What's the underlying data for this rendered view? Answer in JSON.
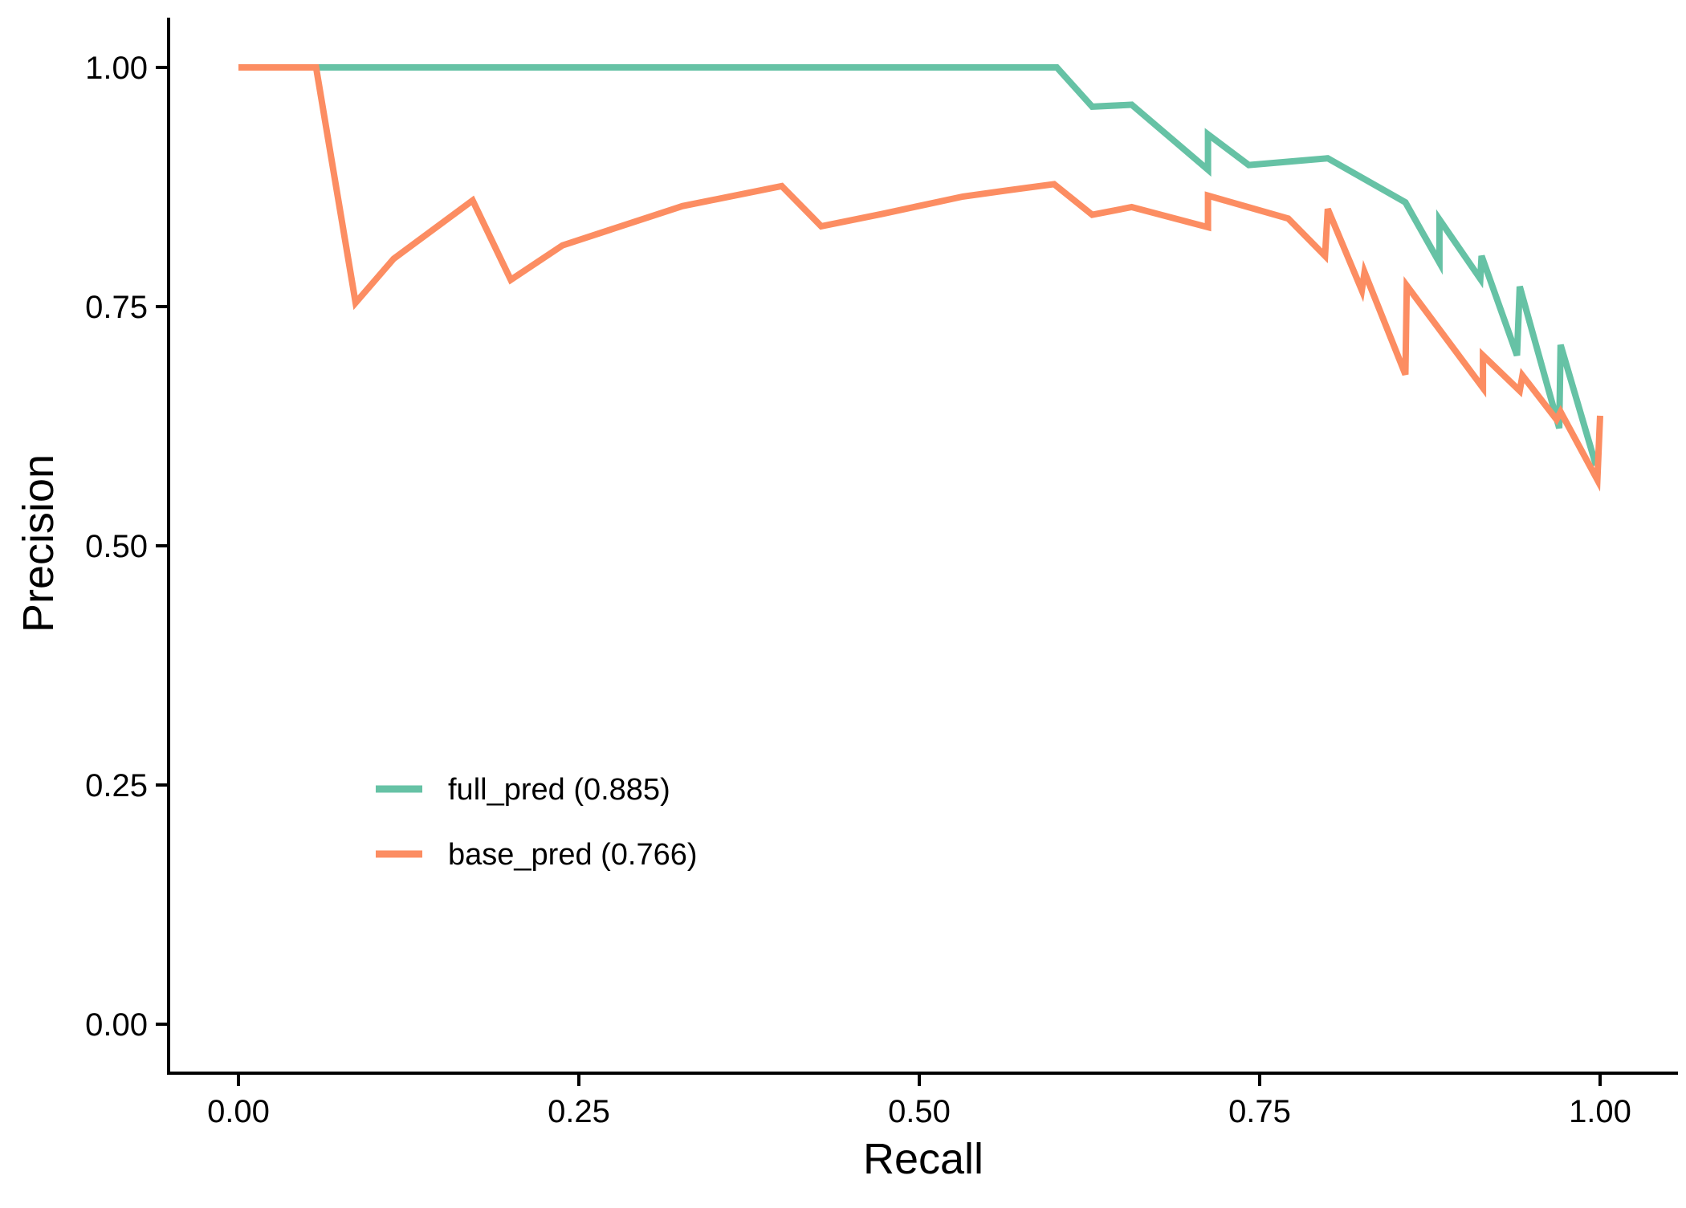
{
  "figure": {
    "background": "#ffffff",
    "text_color": "#000000",
    "axis_color": "#000000"
  },
  "axes": {
    "x": {
      "label": "Recall",
      "tick_labels": [
        "0.00",
        "0.25",
        "0.50",
        "0.75",
        "1.00"
      ],
      "tick_values": [
        0,
        0.25,
        0.5,
        0.75,
        1.0
      ]
    },
    "y": {
      "label": "Precision",
      "tick_labels": [
        "0.00",
        "0.25",
        "0.50",
        "0.75",
        "1.00"
      ],
      "tick_values": [
        0,
        0.25,
        0.5,
        0.75,
        1.0
      ]
    }
  },
  "legend": {
    "items": [
      {
        "label": "full_pred (0.885)",
        "color": "#66C2A5"
      },
      {
        "label": "base_pred (0.766)",
        "color": "#FC8D62"
      }
    ]
  },
  "chart_data": {
    "type": "line",
    "title": "",
    "xlabel": "Recall",
    "ylabel": "Precision",
    "xlim": [
      0,
      1
    ],
    "ylim": [
      0,
      1
    ],
    "grid": false,
    "legend_position": "inside bottom-left",
    "series": [
      {
        "name": "full_pred",
        "auc": 0.885,
        "color": "#66C2A5",
        "points": [
          [
            0.0,
            1.0
          ],
          [
            0.601,
            1.0
          ],
          [
            0.627,
            0.959
          ],
          [
            0.656,
            0.961
          ],
          [
            0.712,
            0.893
          ],
          [
            0.712,
            0.93
          ],
          [
            0.742,
            0.898
          ],
          [
            0.8,
            0.905
          ],
          [
            0.857,
            0.859
          ],
          [
            0.882,
            0.796
          ],
          [
            0.882,
            0.841
          ],
          [
            0.912,
            0.779
          ],
          [
            0.913,
            0.803
          ],
          [
            0.939,
            0.699
          ],
          [
            0.941,
            0.771
          ],
          [
            0.97,
            0.623
          ],
          [
            0.971,
            0.71
          ],
          [
            0.997,
            0.584
          ]
        ]
      },
      {
        "name": "base_pred",
        "auc": 0.766,
        "color": "#FC8D62",
        "points": [
          [
            0.0,
            1.0
          ],
          [
            0.057,
            1.0
          ],
          [
            0.086,
            0.754
          ],
          [
            0.114,
            0.8
          ],
          [
            0.172,
            0.861
          ],
          [
            0.2,
            0.778
          ],
          [
            0.238,
            0.814
          ],
          [
            0.326,
            0.855
          ],
          [
            0.399,
            0.876
          ],
          [
            0.428,
            0.834
          ],
          [
            0.473,
            0.847
          ],
          [
            0.532,
            0.865
          ],
          [
            0.562,
            0.871
          ],
          [
            0.599,
            0.878
          ],
          [
            0.627,
            0.846
          ],
          [
            0.656,
            0.854
          ],
          [
            0.712,
            0.833
          ],
          [
            0.712,
            0.866
          ],
          [
            0.771,
            0.842
          ],
          [
            0.798,
            0.803
          ],
          [
            0.8,
            0.852
          ],
          [
            0.825,
            0.767
          ],
          [
            0.827,
            0.786
          ],
          [
            0.857,
            0.679
          ],
          [
            0.858,
            0.772
          ],
          [
            0.914,
            0.665
          ],
          [
            0.914,
            0.699
          ],
          [
            0.941,
            0.662
          ],
          [
            0.943,
            0.678
          ],
          [
            0.968,
            0.632
          ],
          [
            0.971,
            0.64
          ],
          [
            0.998,
            0.569
          ],
          [
            1.0,
            0.636
          ]
        ]
      }
    ]
  }
}
